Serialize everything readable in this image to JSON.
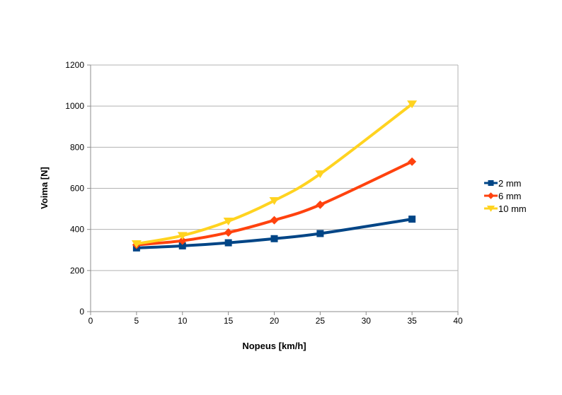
{
  "chart_data": {
    "type": "line",
    "title": "",
    "xlabel": "Nopeus [km/h]",
    "ylabel": "Voima [N]",
    "x": [
      5,
      10,
      15,
      20,
      25,
      35
    ],
    "series": [
      {
        "name": "2 mm",
        "color": "#004586",
        "marker": "square",
        "values": [
          310,
          320,
          335,
          355,
          380,
          450
        ]
      },
      {
        "name": "6 mm",
        "color": "#FF420E",
        "marker": "diamond",
        "values": [
          325,
          345,
          385,
          445,
          520,
          730
        ]
      },
      {
        "name": "10 mm",
        "color": "#FFD320",
        "marker": "triangle-down",
        "values": [
          330,
          370,
          440,
          540,
          670,
          1010
        ]
      }
    ],
    "xlim": [
      0,
      40
    ],
    "ylim": [
      0,
      1200
    ],
    "xticks": [
      0,
      5,
      10,
      15,
      20,
      25,
      30,
      35,
      40
    ],
    "yticks": [
      0,
      200,
      400,
      600,
      800,
      1000,
      1200
    ],
    "grid": "horizontal",
    "smooth_lines": true,
    "legend_position": "right",
    "colors": {
      "gridline": "#b3b3b3",
      "axis": "#8c8c8c",
      "text": "#000000",
      "background": "#ffffff"
    }
  }
}
